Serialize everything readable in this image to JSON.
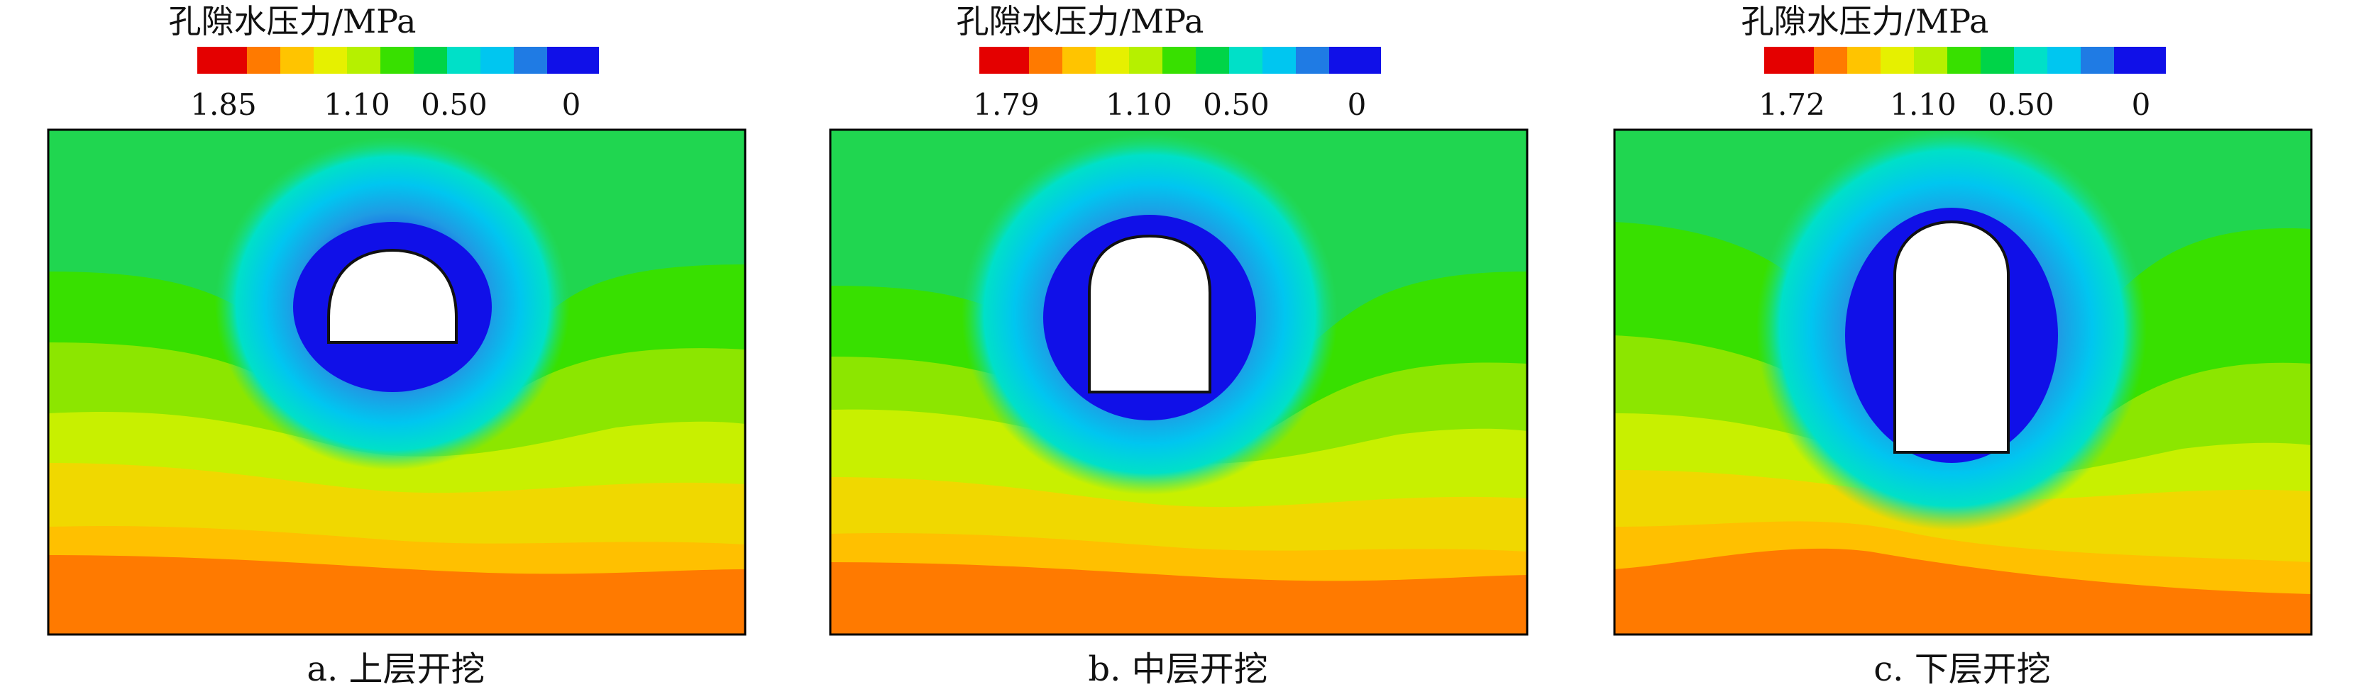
{
  "colormap": [
    "#e40000",
    "#ff7a00",
    "#ffc400",
    "#e6f000",
    "#b6f000",
    "#38e000",
    "#00d448",
    "#00e0c8",
    "#00c6f0",
    "#1f7be4",
    "#1010e8"
  ],
  "panels": [
    {
      "legend_title": "孔隙水压力/MPa",
      "ticks": [
        "1.85",
        "1.10",
        "0.50",
        "0"
      ],
      "caption": "a. 上层开挖"
    },
    {
      "legend_title": "孔隙水压力/MPa",
      "ticks": [
        "1.79",
        "1.10",
        "0.50",
        "0"
      ],
      "caption": "b. 中层开挖"
    },
    {
      "legend_title": "孔隙水压力/MPa",
      "ticks": [
        "1.72",
        "1.10",
        "0.50",
        "0"
      ],
      "caption": "c. 下层开挖"
    }
  ]
}
